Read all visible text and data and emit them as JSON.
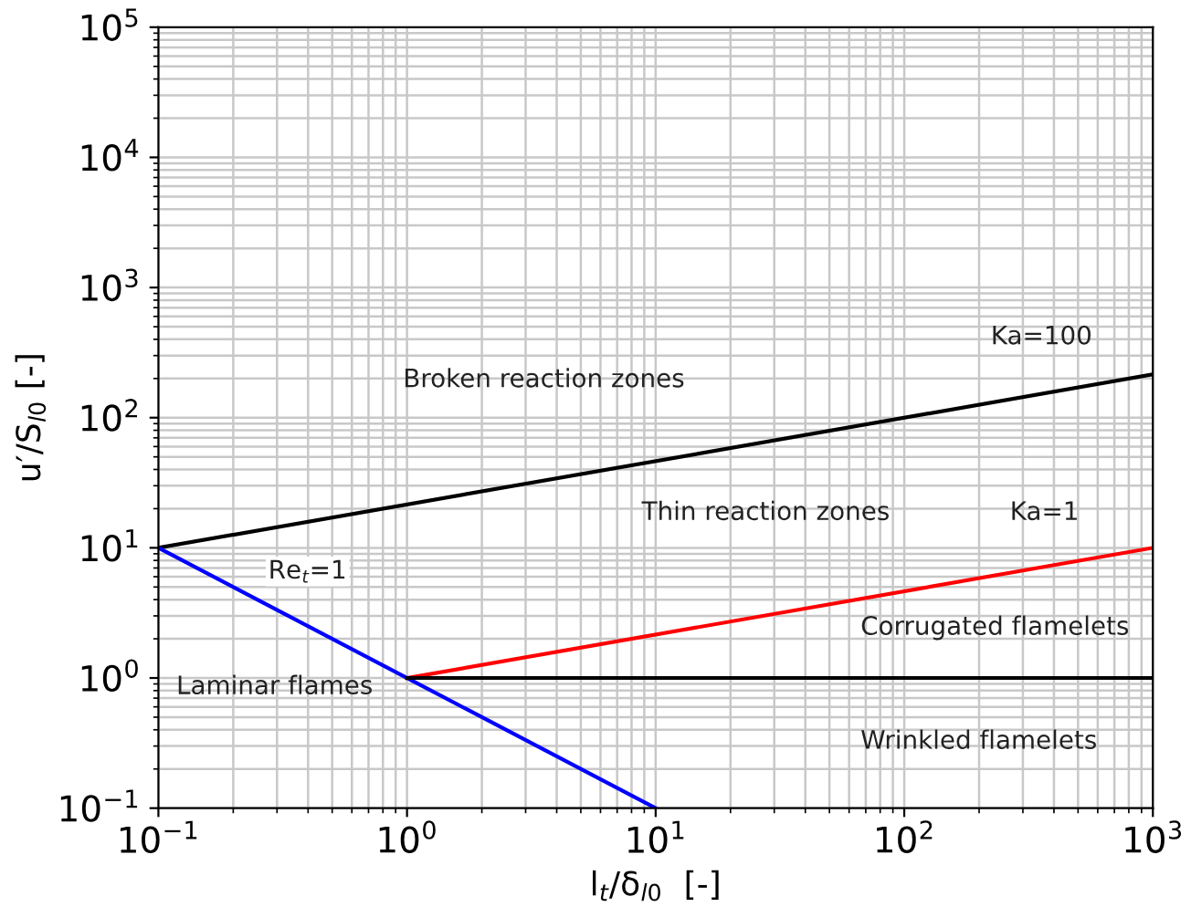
{
  "chart_data": {
    "type": "line",
    "xlabel": "l$_{t}$/δ$_{l0}$  [-]",
    "ylabel": "u′/S$_{l0}$ [-]",
    "log": "xy",
    "grid": true,
    "xlim": [
      0.1,
      1000
    ],
    "ylim": [
      0.1,
      100000
    ],
    "xticks": [
      {
        "value": 0.1,
        "label": "10$^{−1}$"
      },
      {
        "value": 1,
        "label": "10$^{0}$"
      },
      {
        "value": 10,
        "label": "10$^{1}$"
      },
      {
        "value": 100,
        "label": "10$^{2}$"
      },
      {
        "value": 1000,
        "label": "10$^{3}$"
      }
    ],
    "yticks": [
      {
        "value": 0.1,
        "label": "10$^{−1}$"
      },
      {
        "value": 1,
        "label": "10$^{0}$"
      },
      {
        "value": 10,
        "label": "10$^{1}$"
      },
      {
        "value": 100,
        "label": "10$^{2}$"
      },
      {
        "value": 1000,
        "label": "10$^{3}$"
      },
      {
        "value": 10000,
        "label": "10$^{4}$"
      },
      {
        "value": 100000,
        "label": "10$^{5}$"
      }
    ],
    "series": [
      {
        "color": "#000000",
        "x": [
          0.1,
          1000
        ],
        "values": [
          10,
          215
        ]
      },
      {
        "color": "#ff0000",
        "x": [
          1,
          1000
        ],
        "values": [
          1,
          10
        ]
      },
      {
        "color": "#0000ff",
        "x": [
          0.1,
          10
        ],
        "values": [
          10,
          0.1
        ]
      },
      {
        "color": "#000000",
        "x": [
          1,
          1000
        ],
        "values": [
          1,
          1
        ]
      }
    ],
    "annotations": [
      "Broken reaction zones",
      "Ka=100",
      "Thin reaction zones",
      "Ka=1",
      "Re$_{t}$=1",
      "Corrugated flamelets",
      "Laminar flames",
      "Wrinkled flamelets"
    ]
  }
}
